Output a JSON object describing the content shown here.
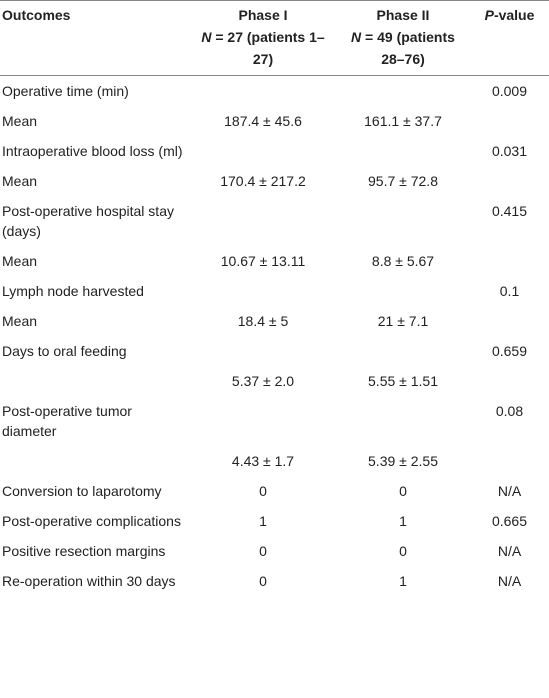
{
  "table": {
    "headers": [
      {
        "label": "Outcomes"
      },
      {
        "label": "Phase I",
        "n_symbol": "N",
        "n_text": " = 27 (patients 1–27)"
      },
      {
        "label": "Phase II",
        "n_symbol": "N",
        "n_text": " = 49 (patients 28–76)"
      },
      {
        "p_symbol": "P",
        "label": "-value"
      }
    ],
    "rows": [
      [
        "Operative time (min)",
        null,
        null,
        "0.009"
      ],
      [
        "Mean",
        "187.4 ± 45.6",
        "161.1 ± 37.7",
        null
      ],
      [
        "Intraoperative blood loss (ml)",
        null,
        null,
        "0.031"
      ],
      [
        "Mean",
        "170.4 ± 217.2",
        "95.7 ± 72.8",
        null
      ],
      [
        "Post-operative hospital stay (days)",
        null,
        null,
        "0.415"
      ],
      [
        "Mean",
        "10.67 ± 13.11",
        "8.8 ± 5.67",
        null
      ],
      [
        "Lymph node harvested",
        null,
        null,
        "0.1"
      ],
      [
        "Mean",
        "18.4 ± 5",
        "21 ± 7.1",
        null
      ],
      [
        "Days to oral feeding",
        null,
        null,
        "0.659"
      ],
      [
        null,
        "5.37 ± 2.0",
        "5.55 ± 1.51",
        null
      ],
      [
        "Post-operative tumor diameter",
        null,
        null,
        "0.08"
      ],
      [
        null,
        "4.43 ± 1.7",
        "5.39 ± 2.55",
        null
      ],
      [
        "Conversion to laparotomy",
        "0",
        "0",
        "N/A"
      ],
      [
        "Post-operative complications",
        "1",
        "1",
        "0.665"
      ],
      [
        "Positive resection margins",
        "0",
        "0",
        "N/A"
      ],
      [
        "Re-operation within 30 days",
        "0",
        "1",
        "N/A"
      ]
    ]
  }
}
